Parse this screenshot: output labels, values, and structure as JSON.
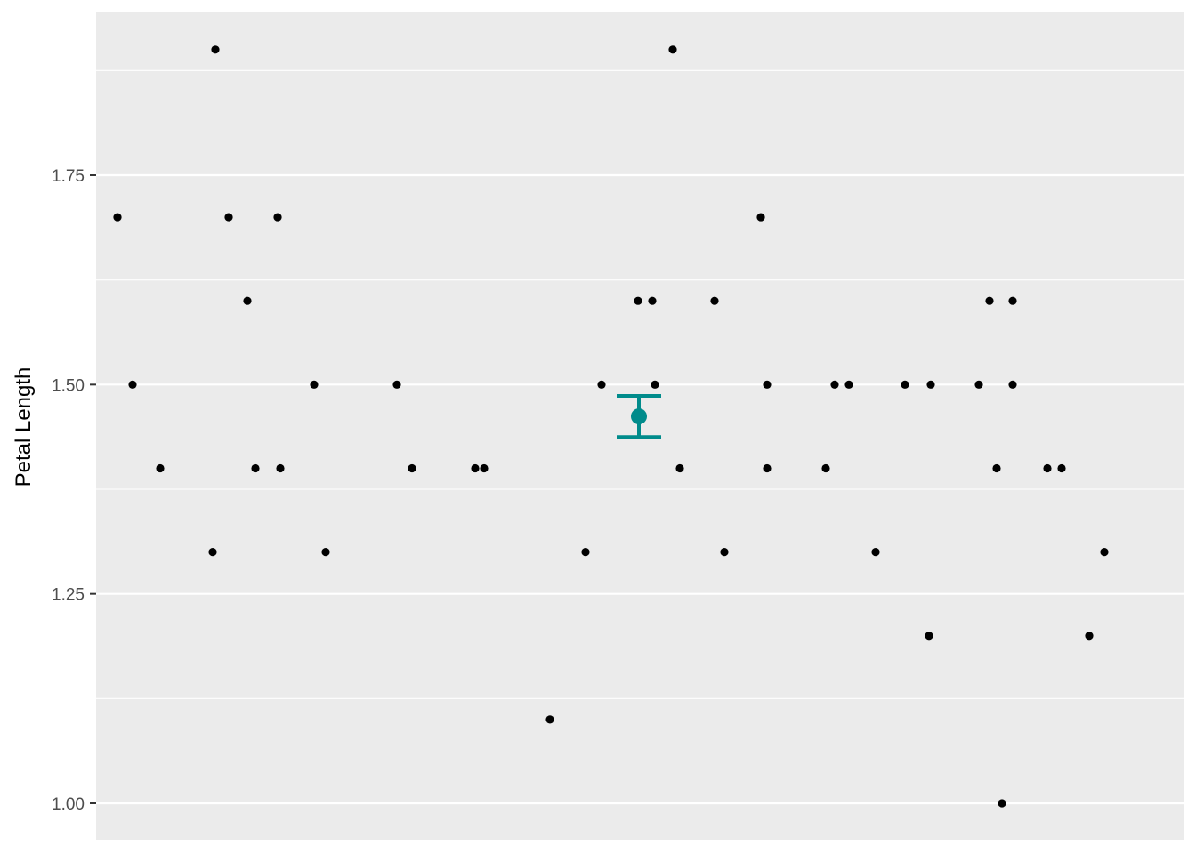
{
  "chart_data": {
    "type": "scatter",
    "title": "",
    "xlabel": "",
    "ylabel": "Petal Length",
    "ylim": [
      0.98,
      1.92
    ],
    "y_ticks": [
      1.0,
      1.25,
      1.5,
      1.75
    ],
    "y_tick_labels": [
      "1.00",
      "1.25",
      "1.50",
      "1.75"
    ],
    "grid": true,
    "colors": {
      "panel": "#ebebeb",
      "grid": "#ffffff",
      "points": "#000000",
      "summary": "#008b8b",
      "tick_text": "#4d4d4d"
    },
    "points": [
      {
        "x": -0.586,
        "y": 1.7
      },
      {
        "x": -0.569,
        "y": 1.5
      },
      {
        "x": -0.538,
        "y": 1.4
      },
      {
        "x": -0.479,
        "y": 1.3
      },
      {
        "x": -0.476,
        "y": 1.9
      },
      {
        "x": -0.461,
        "y": 1.7
      },
      {
        "x": -0.44,
        "y": 1.6
      },
      {
        "x": -0.431,
        "y": 1.4
      },
      {
        "x": -0.406,
        "y": 1.7
      },
      {
        "x": -0.403,
        "y": 1.4
      },
      {
        "x": -0.365,
        "y": 1.5
      },
      {
        "x": -0.352,
        "y": 1.3
      },
      {
        "x": -0.272,
        "y": 1.5
      },
      {
        "x": -0.255,
        "y": 1.4
      },
      {
        "x": -0.1,
        "y": 1.1
      },
      {
        "x": -0.184,
        "y": 1.4
      },
      {
        "x": -0.174,
        "y": 1.4
      },
      {
        "x": -0.06,
        "y": 1.3
      },
      {
        "x": -0.042,
        "y": 1.5
      },
      {
        "x": -0.001,
        "y": 1.6
      },
      {
        "x": 0.015,
        "y": 1.6
      },
      {
        "x": 0.018,
        "y": 1.5
      },
      {
        "x": 0.038,
        "y": 1.9
      },
      {
        "x": 0.046,
        "y": 1.4
      },
      {
        "x": 0.085,
        "y": 1.6
      },
      {
        "x": 0.096,
        "y": 1.3
      },
      {
        "x": 0.137,
        "y": 1.7
      },
      {
        "x": 0.144,
        "y": 1.5
      },
      {
        "x": 0.144,
        "y": 1.4
      },
      {
        "x": 0.21,
        "y": 1.4
      },
      {
        "x": 0.22,
        "y": 1.5
      },
      {
        "x": 0.236,
        "y": 1.5
      },
      {
        "x": 0.266,
        "y": 1.3
      },
      {
        "x": 0.299,
        "y": 1.5
      },
      {
        "x": 0.328,
        "y": 1.5
      },
      {
        "x": 0.326,
        "y": 1.2
      },
      {
        "x": 0.382,
        "y": 1.5
      },
      {
        "x": 0.408,
        "y": 1.0
      },
      {
        "x": 0.394,
        "y": 1.6
      },
      {
        "x": 0.402,
        "y": 1.4
      },
      {
        "x": 0.42,
        "y": 1.5
      },
      {
        "x": 0.42,
        "y": 1.6
      },
      {
        "x": 0.459,
        "y": 1.4
      },
      {
        "x": 0.475,
        "y": 1.4
      },
      {
        "x": 0.506,
        "y": 1.2
      },
      {
        "x": 0.523,
        "y": 1.3
      }
    ],
    "summary": {
      "mean": 1.462,
      "ymin": 1.4374,
      "ymax": 1.4866
    }
  }
}
